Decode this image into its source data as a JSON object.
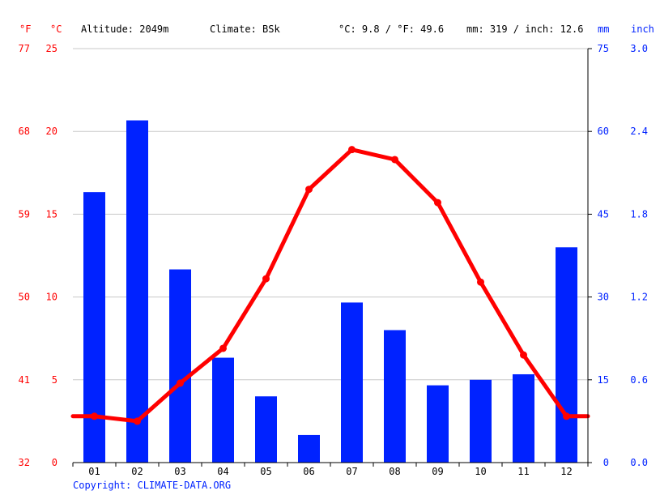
{
  "header": {
    "unit_f": "°F",
    "unit_c": "°C",
    "altitude": "Altitude: 2049m",
    "climate": "Climate: BSk",
    "temp_summary": "°C: 9.8 / °F: 49.6",
    "precip_summary": "mm: 319 / inch: 12.6",
    "unit_mm": "mm",
    "unit_inch": "inch"
  },
  "footer": {
    "copyright": "Copyright: CLIMATE-DATA.ORG"
  },
  "colors": {
    "temp": "#ff0000",
    "precip": "#0022ff",
    "grid": "#c8c8c8",
    "axis": "#000000"
  },
  "chart_data": {
    "type": "bar",
    "categories": [
      "01",
      "02",
      "03",
      "04",
      "05",
      "06",
      "07",
      "08",
      "09",
      "10",
      "11",
      "12"
    ],
    "series": [
      {
        "type": "bar",
        "axis": "mm",
        "values": [
          49,
          62,
          35,
          19,
          12,
          5,
          29,
          24,
          14,
          15,
          16,
          39
        ]
      },
      {
        "type": "line",
        "axis": "°C",
        "values": [
          2.8,
          2.5,
          4.8,
          6.9,
          11.1,
          16.5,
          18.9,
          18.3,
          15.7,
          10.9,
          6.5,
          2.8
        ]
      }
    ],
    "axes": {
      "temp_c": {
        "range": [
          0,
          25
        ],
        "ticks": [
          "0",
          "5",
          "10",
          "15",
          "20",
          "25"
        ]
      },
      "temp_f": {
        "ticks": [
          "32",
          "41",
          "50",
          "59",
          "68",
          "77"
        ]
      },
      "precip_mm": {
        "range": [
          0,
          75
        ],
        "ticks": [
          "0",
          "15",
          "30",
          "45",
          "60",
          "75"
        ]
      },
      "precip_inch": {
        "ticks": [
          "0.0",
          "0.6",
          "1.2",
          "1.8",
          "2.4",
          "3.0"
        ]
      }
    },
    "grid": true
  }
}
